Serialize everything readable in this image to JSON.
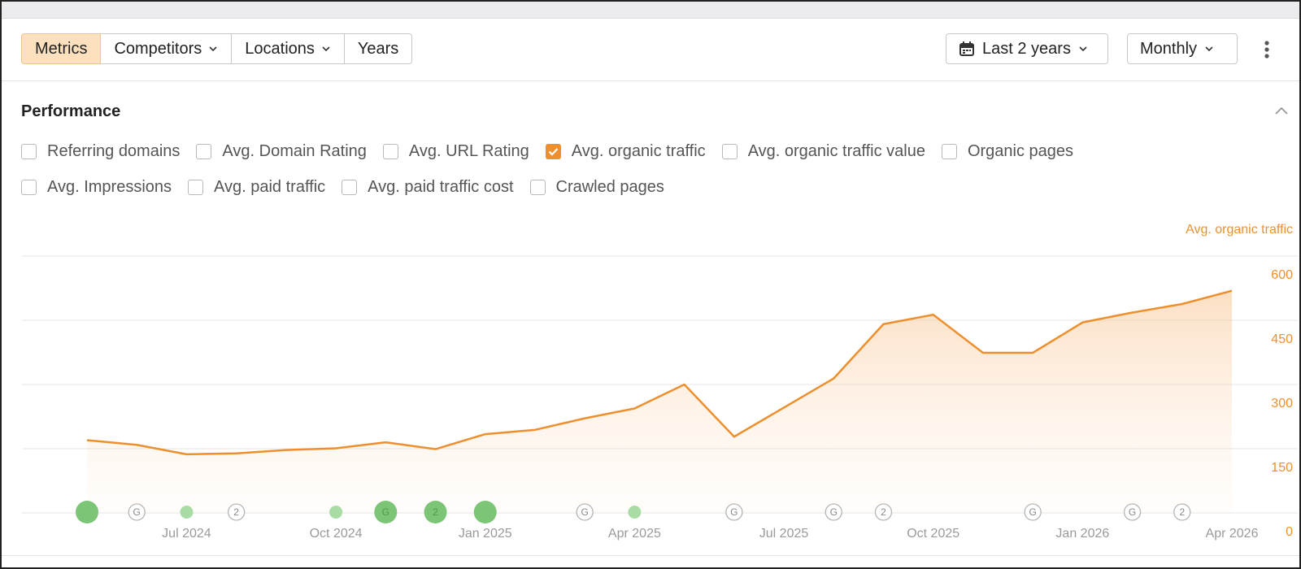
{
  "toolbar": {
    "tabs": [
      {
        "label": "Metrics",
        "dropdown": false,
        "active": true
      },
      {
        "label": "Competitors",
        "dropdown": true,
        "active": false
      },
      {
        "label": "Locations",
        "dropdown": true,
        "active": false
      },
      {
        "label": "Years",
        "dropdown": false,
        "active": false
      }
    ],
    "period": "Last 2 years",
    "interval": "Monthly"
  },
  "section": {
    "title": "Performance",
    "metrics": [
      [
        {
          "label": "Referring domains",
          "checked": false
        },
        {
          "label": "Avg. Domain Rating",
          "checked": false
        },
        {
          "label": "Avg. URL Rating",
          "checked": false
        },
        {
          "label": "Avg. organic traffic",
          "checked": true
        },
        {
          "label": "Avg. organic traffic value",
          "checked": false
        },
        {
          "label": "Organic pages",
          "checked": false
        }
      ],
      [
        {
          "label": "Avg. Impressions",
          "checked": false
        },
        {
          "label": "Avg. paid traffic",
          "checked": false
        },
        {
          "label": "Avg. paid traffic cost",
          "checked": false
        },
        {
          "label": "Crawled pages",
          "checked": false
        }
      ]
    ]
  },
  "chart_data": {
    "type": "area",
    "y_label": "Avg. organic traffic",
    "color": "#ee8f2e",
    "categories": [
      null,
      null,
      "Jul 2024",
      null,
      null,
      "Oct 2024",
      null,
      null,
      "Jan 2025",
      null,
      null,
      "Apr 2025",
      null,
      null,
      "Jul 2025",
      null,
      null,
      "Oct 2025",
      null,
      null,
      "Jan 2026",
      null,
      null,
      "Apr 2026"
    ],
    "values": [
      170,
      159,
      137,
      139,
      147,
      151,
      165,
      149,
      184,
      194,
      221,
      244,
      300,
      178,
      246,
      314,
      441,
      463,
      374,
      374,
      445,
      468,
      488,
      519
    ],
    "event_labels": [
      null,
      "G",
      null,
      "2",
      null,
      null,
      "G",
      "2",
      null,
      null,
      "G",
      null,
      null,
      "G",
      null,
      "G",
      "2",
      null,
      null,
      "G",
      null,
      "G",
      "2",
      null
    ],
    "ylim": [
      0,
      600
    ],
    "yticks": [
      0,
      150,
      300,
      450,
      600
    ],
    "grid": true
  }
}
